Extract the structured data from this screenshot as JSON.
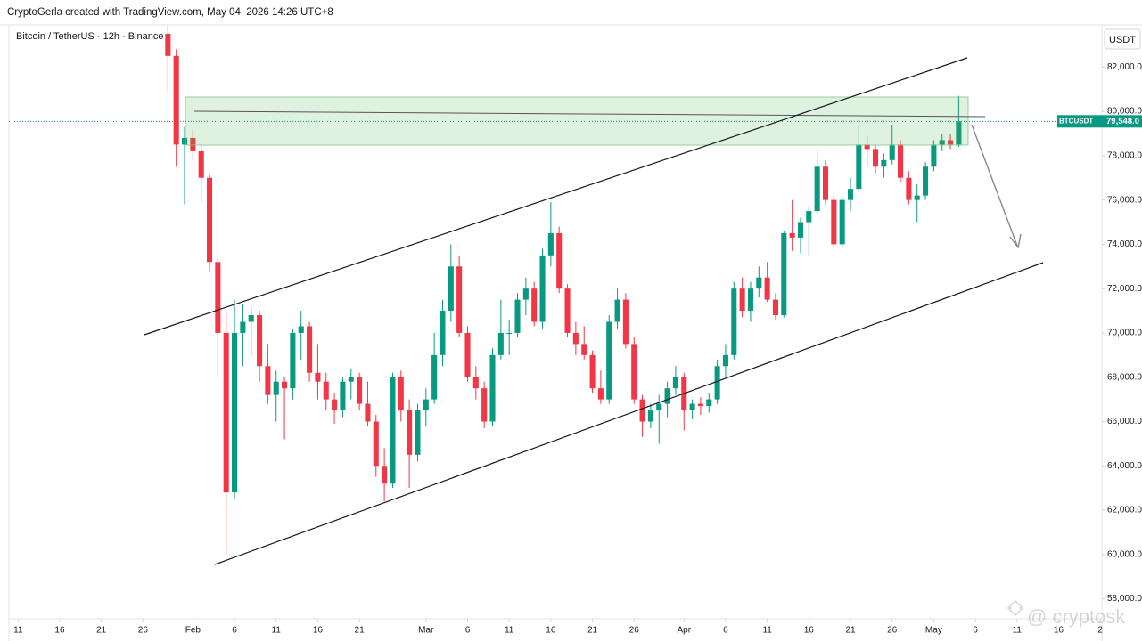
{
  "header": "CryptoGerla created with TradingView.com, May 04, 2026 14:26 UTC+8",
  "chart_data": {
    "type": "candlestick",
    "title": "Bitcoin / TetherUS · 12h · Binance",
    "currency": "USDT",
    "x": [
      29,
      30,
      31,
      32,
      33,
      34,
      35,
      36,
      37,
      38,
      39,
      40,
      41,
      42,
      43,
      44,
      45,
      46,
      47,
      48,
      49,
      50,
      51,
      52,
      53,
      54,
      55,
      56,
      57,
      58,
      59,
      60,
      61,
      62,
      63,
      64,
      65,
      66,
      67,
      68,
      69,
      70,
      71,
      72,
      73,
      74,
      75,
      76,
      77,
      78,
      79,
      80,
      81,
      82,
      83,
      84,
      85,
      86,
      87,
      88,
      89,
      90,
      91,
      92,
      93,
      94,
      95,
      96,
      97,
      98,
      99,
      100,
      101,
      102,
      103,
      104,
      105,
      106,
      107,
      108,
      109,
      110,
      111,
      112,
      113,
      114,
      115,
      116,
      117,
      118,
      119,
      120,
      121,
      122,
      123,
      124
    ],
    "open": [
      83500,
      82500,
      78500,
      78800,
      78200,
      77000,
      73200,
      70000,
      62800,
      70000,
      70500,
      70800,
      68500,
      67200,
      67800,
      67500,
      70000,
      70300,
      68200,
      67800,
      67000,
      66500,
      67800,
      68000,
      66800,
      66000,
      64000,
      63200,
      68000,
      66500,
      64500,
      66500,
      67000,
      69000,
      71000,
      73000,
      70000,
      68000,
      67500,
      66000,
      69000,
      70000,
      70000,
      71500,
      72000,
      70500,
      73500,
      74500,
      72000,
      70000,
      69500,
      69000,
      67500,
      67000,
      70500,
      71500,
      69500,
      67000,
      66000,
      66500,
      66800,
      67500,
      68000,
      66500,
      66800,
      66700,
      67000,
      68500,
      69000,
      72000,
      71000,
      72000,
      72500,
      71500,
      70800,
      74500,
      74300,
      75000,
      75500,
      77500,
      76000,
      74000,
      76000,
      76500,
      78500,
      78300,
      77500,
      77800,
      78500,
      77000,
      76000,
      76200,
      77500,
      78500,
      78700,
      78500
    ],
    "high": [
      83900,
      82800,
      79300,
      79200,
      78500,
      77200,
      73500,
      71000,
      71500,
      71300,
      71200,
      71000,
      69500,
      68300,
      68000,
      70200,
      71000,
      70500,
      69500,
      68200,
      67300,
      68000,
      68400,
      68200,
      67800,
      66300,
      64800,
      68200,
      68300,
      67000,
      66800,
      67500,
      70000,
      71500,
      74000,
      73500,
      70300,
      68500,
      67800,
      69300,
      71500,
      70600,
      71800,
      72500,
      72300,
      73800,
      75900,
      74800,
      72200,
      70500,
      70300,
      69200,
      68300,
      70800,
      72000,
      71800,
      69800,
      67200,
      66800,
      67200,
      67800,
      68500,
      68200,
      67000,
      67100,
      67300,
      68800,
      69500,
      72300,
      72500,
      72300,
      73000,
      73200,
      71800,
      74600,
      76000,
      75200,
      75700,
      78300,
      77800,
      76200,
      76200,
      77000,
      79400,
      78900,
      78500,
      78100,
      79400,
      78700,
      77300,
      76700,
      77700,
      78700,
      79000,
      79000,
      80700
    ],
    "low": [
      80900,
      77500,
      75800,
      77800,
      75900,
      72800,
      68000,
      60000,
      62500,
      68500,
      69000,
      67800,
      66800,
      66000,
      65200,
      67000,
      68800,
      67800,
      67000,
      66500,
      65900,
      66200,
      67000,
      66500,
      65800,
      63500,
      62400,
      63000,
      66000,
      63000,
      64200,
      65800,
      66800,
      68500,
      70500,
      69800,
      67800,
      67000,
      65700,
      65800,
      68800,
      69000,
      69800,
      70800,
      70300,
      70200,
      73000,
      71800,
      69800,
      69000,
      68800,
      67300,
      66800,
      66800,
      70200,
      69300,
      66800,
      65300,
      65700,
      65000,
      66200,
      67200,
      65600,
      66100,
      66300,
      66400,
      66800,
      68000,
      68800,
      70700,
      70500,
      71600,
      71400,
      70600,
      70700,
      73700,
      73600,
      73500,
      75300,
      75800,
      73800,
      73800,
      75500,
      76300,
      77500,
      77200,
      77000,
      77600,
      76800,
      75800,
      75000,
      76000,
      77300,
      78200,
      78300,
      78400
    ],
    "close": [
      82500,
      78500,
      78800,
      78200,
      77000,
      73200,
      70000,
      62800,
      70000,
      70500,
      70800,
      68500,
      67200,
      67800,
      67500,
      70000,
      70300,
      68200,
      67800,
      67000,
      66500,
      67800,
      68000,
      66800,
      66000,
      64000,
      63200,
      68000,
      66500,
      64500,
      66500,
      67000,
      69000,
      71000,
      73000,
      70000,
      68000,
      67500,
      66000,
      69000,
      70000,
      70000,
      71500,
      72000,
      70500,
      73500,
      74500,
      72000,
      70000,
      69500,
      69000,
      67500,
      67000,
      70500,
      71500,
      69500,
      67000,
      66000,
      66500,
      66800,
      67500,
      68000,
      66500,
      66800,
      66700,
      67000,
      68500,
      69000,
      72000,
      71000,
      72000,
      72500,
      71500,
      70800,
      74500,
      74300,
      75000,
      75500,
      77500,
      76000,
      74000,
      76000,
      76500,
      78500,
      78300,
      77500,
      77800,
      78500,
      77000,
      76000,
      76200,
      77500,
      78500,
      78700,
      78500,
      79548
    ],
    "up_color": "#089981",
    "down_color": "#f23645",
    "xlim": [
      9.9,
      141.2
    ],
    "xticks": [
      11,
      16,
      21,
      26,
      {
        "value": 32,
        "label": "Feb"
      },
      {
        "value": 37,
        "label": "6"
      },
      {
        "value": 42,
        "label": "11"
      },
      {
        "value": 47,
        "label": "16"
      },
      {
        "value": 52,
        "label": "21"
      },
      {
        "value": 60,
        "label": "Mar"
      },
      {
        "value": 65,
        "label": "6"
      },
      {
        "value": 70,
        "label": "11"
      },
      {
        "value": 75,
        "label": "16"
      },
      {
        "value": 80,
        "label": "21"
      },
      {
        "value": 85,
        "label": "26"
      },
      {
        "value": 91,
        "label": "Apr"
      },
      {
        "value": 96,
        "label": "6"
      },
      {
        "value": 101,
        "label": "11"
      },
      {
        "value": 106,
        "label": "16"
      },
      {
        "value": 111,
        "label": "21"
      },
      {
        "value": 116,
        "label": "26"
      },
      {
        "value": 121,
        "label": "May"
      },
      {
        "value": 126,
        "label": "6"
      },
      {
        "value": 131,
        "label": "11"
      },
      {
        "value": 136,
        "label": "16"
      },
      {
        "value": 141,
        "label": "2"
      }
    ],
    "ylim": [
      57100,
      83900
    ],
    "yticks": [
      {
        "value": 58000,
        "label": "58,000.0"
      },
      {
        "value": 60000,
        "label": "60,000.0"
      },
      {
        "value": 62000,
        "label": "62,000.0"
      },
      {
        "value": 64000,
        "label": "64,000.0"
      },
      {
        "value": 66000,
        "label": "66,000.0"
      },
      {
        "value": 68000,
        "label": "68,000.0"
      },
      {
        "value": 70000,
        "label": "70,000.0"
      },
      {
        "value": 72000,
        "label": "72,000.0"
      },
      {
        "value": 74000,
        "label": "74,000.0"
      },
      {
        "value": 76000,
        "label": "76,000.0"
      },
      {
        "value": 78000,
        "label": "78,000.0"
      },
      {
        "value": 80000,
        "label": "80,000.0"
      },
      {
        "value": 82000,
        "label": "82,000.0"
      }
    ],
    "last": {
      "name": "BTCUSDT",
      "value": 79548,
      "label": "79,548.0"
    },
    "watermark": "@ cryptosk"
  }
}
